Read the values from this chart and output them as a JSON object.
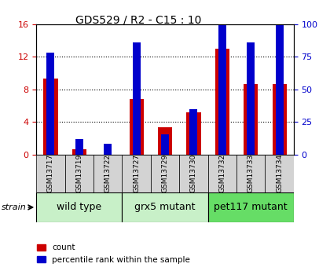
{
  "title": "GDS529 / R2 - C15 : 10",
  "samples": [
    "GSM13717",
    "GSM13719",
    "GSM13722",
    "GSM13727",
    "GSM13729",
    "GSM13730",
    "GSM13732",
    "GSM13733",
    "GSM13734"
  ],
  "count_values": [
    9.3,
    0.6,
    0.0,
    6.8,
    3.3,
    5.2,
    13.0,
    8.7,
    8.7
  ],
  "percentile_values": [
    12.5,
    1.9,
    1.3,
    13.8,
    2.5,
    5.6,
    20.0,
    13.8,
    18.8
  ],
  "groups": [
    {
      "label": "wild type",
      "start": 0,
      "end": 3,
      "color": "#c8f0c8"
    },
    {
      "label": "grx5 mutant",
      "start": 3,
      "end": 6,
      "color": "#c8f0c8"
    },
    {
      "label": "pet117 mutant",
      "start": 6,
      "end": 9,
      "color": "#66dd66"
    }
  ],
  "bar_width": 0.5,
  "red_color": "#cc0000",
  "blue_color": "#0000cc",
  "ylim_left": [
    0,
    16
  ],
  "ylim_right": [
    0,
    100
  ],
  "yticks_left": [
    0,
    4,
    8,
    12,
    16
  ],
  "yticks_right": [
    0,
    25,
    50,
    75,
    100
  ],
  "plot_bg_color": "#ffffff",
  "tick_label_color_left": "#cc0000",
  "tick_label_color_right": "#0000cc",
  "legend_count": "count",
  "legend_percentile": "percentile rank within the sample",
  "strain_label": "strain",
  "sample_bg_color": "#d3d3d3",
  "title_fontsize": 10,
  "tick_fontsize": 8,
  "label_fontsize": 9,
  "group_label_fontsize": 9
}
